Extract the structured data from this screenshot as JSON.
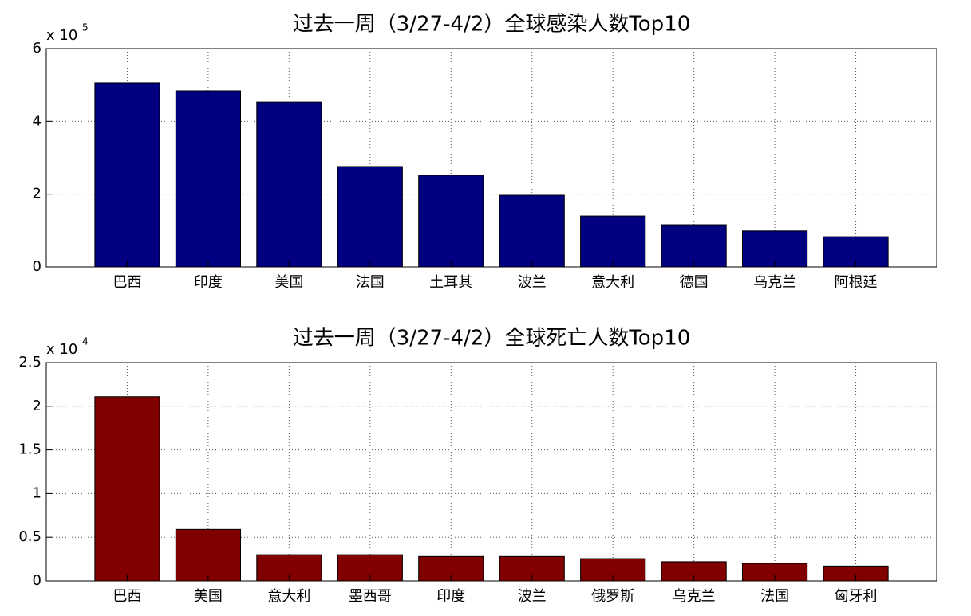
{
  "chart_data": [
    {
      "type": "bar",
      "title": "过去一周（3/27-4/2）全球感染人数Top10",
      "y_multiplier": "x 10",
      "y_exponent": "5",
      "categories": [
        "巴西",
        "印度",
        "美国",
        "法国",
        "土耳其",
        "波兰",
        "意大利",
        "德国",
        "乌克兰",
        "阿根廷"
      ],
      "values": [
        5.06,
        4.84,
        4.53,
        2.76,
        2.52,
        1.97,
        1.4,
        1.16,
        0.99,
        0.83
      ],
      "color": "#000080",
      "ylim": [
        0,
        6
      ],
      "yticks": [
        0,
        2,
        4,
        6
      ],
      "grid": true
    },
    {
      "type": "bar",
      "title": "过去一周（3/27-4/2）全球死亡人数Top10",
      "y_multiplier": "x 10",
      "y_exponent": "4",
      "categories": [
        "巴西",
        "美国",
        "意大利",
        "墨西哥",
        "印度",
        "波兰",
        "俄罗斯",
        "乌克兰",
        "法国",
        "匈牙利"
      ],
      "values": [
        2.11,
        0.59,
        0.3,
        0.3,
        0.28,
        0.28,
        0.255,
        0.22,
        0.2,
        0.17
      ],
      "color": "#800000",
      "ylim": [
        0,
        2.5
      ],
      "yticks": [
        0,
        0.5,
        1,
        1.5,
        2,
        2.5
      ],
      "grid": true
    }
  ]
}
